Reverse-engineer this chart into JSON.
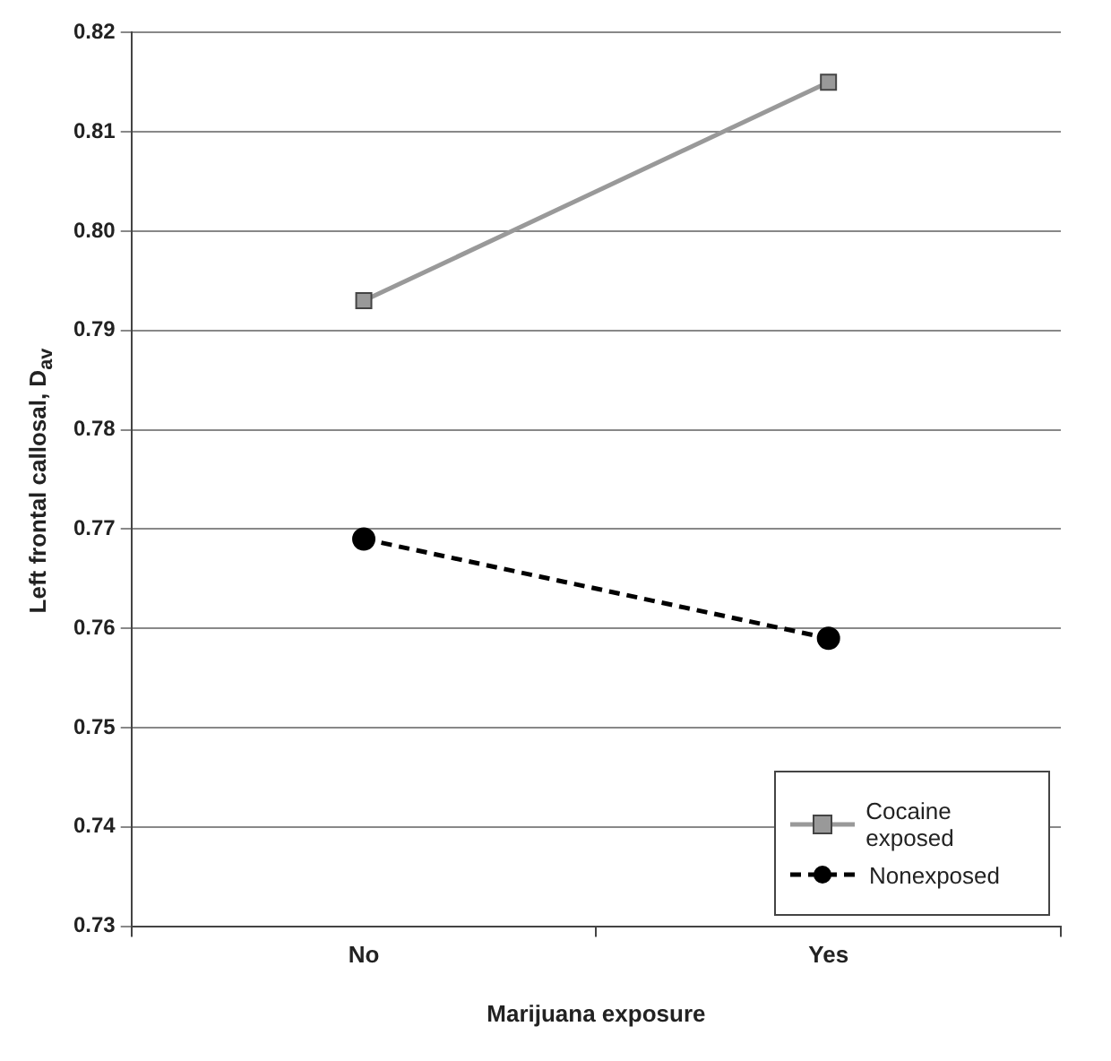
{
  "chart_data": {
    "type": "line",
    "xlabel": "Marijuana exposure",
    "ylabel": "Left frontal callosal, D$_{av}$",
    "categories": [
      "No",
      "Yes"
    ],
    "series": [
      {
        "name": "Cocaine exposed",
        "color": "#999999",
        "values": [
          0.793,
          0.815
        ],
        "marker": "square",
        "line_style": "solid"
      },
      {
        "name": "Nonexposed",
        "color": "#000000",
        "values": [
          0.769,
          0.759
        ],
        "marker": "circle",
        "line_style": "dashed"
      }
    ],
    "ylim": [
      0.73,
      0.82
    ],
    "yticks": [
      0.73,
      0.74,
      0.75,
      0.76,
      0.77,
      0.78,
      0.79,
      {
        "value": 0.8,
        "label": "0.80"
      },
      0.81,
      0.82
    ],
    "grid": "y",
    "legend": "bottom right"
  }
}
